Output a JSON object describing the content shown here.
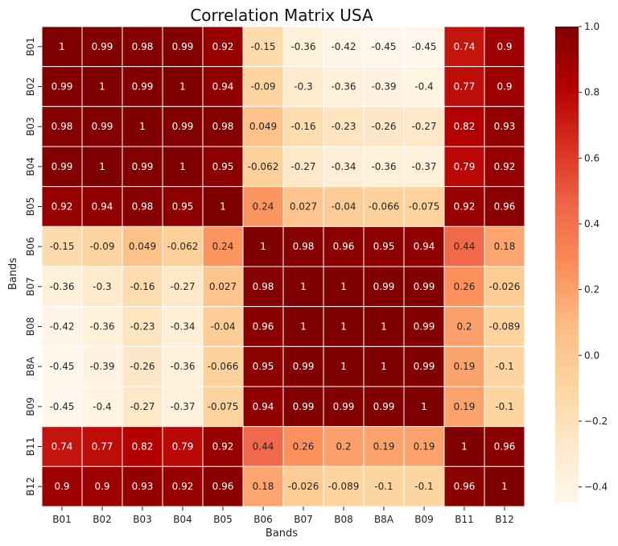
{
  "chart_data": {
    "type": "heatmap",
    "title": "Correlation Matrix USA",
    "xlabel": "Bands",
    "ylabel": "Bands",
    "x_categories": [
      "B01",
      "B02",
      "B03",
      "B04",
      "B05",
      "B06",
      "B07",
      "B08",
      "B8A",
      "B09",
      "B11",
      "B12"
    ],
    "y_categories": [
      "B01",
      "B02",
      "B03",
      "B04",
      "B05",
      "B06",
      "B07",
      "B08",
      "B8A",
      "B09",
      "B11",
      "B12"
    ],
    "values": [
      [
        1,
        0.99,
        0.98,
        0.99,
        0.92,
        -0.15,
        -0.36,
        -0.42,
        -0.45,
        -0.45,
        0.74,
        0.9
      ],
      [
        0.99,
        1,
        0.99,
        1,
        0.94,
        -0.09,
        -0.3,
        -0.36,
        -0.39,
        -0.4,
        0.77,
        0.9
      ],
      [
        0.98,
        0.99,
        1,
        0.99,
        0.98,
        0.049,
        -0.16,
        -0.23,
        -0.26,
        -0.27,
        0.82,
        0.93
      ],
      [
        0.99,
        1,
        0.99,
        1,
        0.95,
        -0.062,
        -0.27,
        -0.34,
        -0.36,
        -0.37,
        0.79,
        0.92
      ],
      [
        0.92,
        0.94,
        0.98,
        0.95,
        1,
        0.24,
        0.027,
        -0.04,
        -0.066,
        -0.075,
        0.92,
        0.96
      ],
      [
        -0.15,
        -0.09,
        0.049,
        -0.062,
        0.24,
        1,
        0.98,
        0.96,
        0.95,
        0.94,
        0.44,
        0.18
      ],
      [
        -0.36,
        -0.3,
        -0.16,
        -0.27,
        0.027,
        0.98,
        1,
        1,
        0.99,
        0.99,
        0.26,
        -0.026
      ],
      [
        -0.42,
        -0.36,
        -0.23,
        -0.34,
        -0.04,
        0.96,
        1,
        1,
        1,
        0.99,
        0.2,
        -0.089
      ],
      [
        -0.45,
        -0.39,
        -0.26,
        -0.36,
        -0.066,
        0.95,
        0.99,
        1,
        1,
        0.99,
        0.19,
        -0.1
      ],
      [
        -0.45,
        -0.4,
        -0.27,
        -0.37,
        -0.075,
        0.94,
        0.99,
        0.99,
        0.99,
        1,
        0.19,
        -0.1
      ],
      [
        0.74,
        0.77,
        0.82,
        0.79,
        0.92,
        0.44,
        0.26,
        0.2,
        0.19,
        0.19,
        1,
        0.96
      ],
      [
        0.9,
        0.9,
        0.93,
        0.92,
        0.96,
        0.18,
        -0.026,
        -0.089,
        -0.1,
        -0.1,
        0.96,
        1
      ]
    ],
    "colorbar": {
      "ticks": [
        "1.0",
        "0.8",
        "0.6",
        "0.4",
        "0.2",
        "0.0",
        "−0.2",
        "−0.4"
      ],
      "tick_values": [
        1.0,
        0.8,
        0.6,
        0.4,
        0.2,
        0.0,
        -0.2,
        -0.4
      ],
      "range": [
        -0.45,
        1.0
      ],
      "colormap": "OrRd",
      "colors": [
        "#fff7ec",
        "#fee8c8",
        "#fdd49e",
        "#fdbb84",
        "#fc8d59",
        "#ef6548",
        "#d7301f",
        "#b30000",
        "#7f0000"
      ]
    },
    "grid": false,
    "legend": "colorbar-right"
  }
}
